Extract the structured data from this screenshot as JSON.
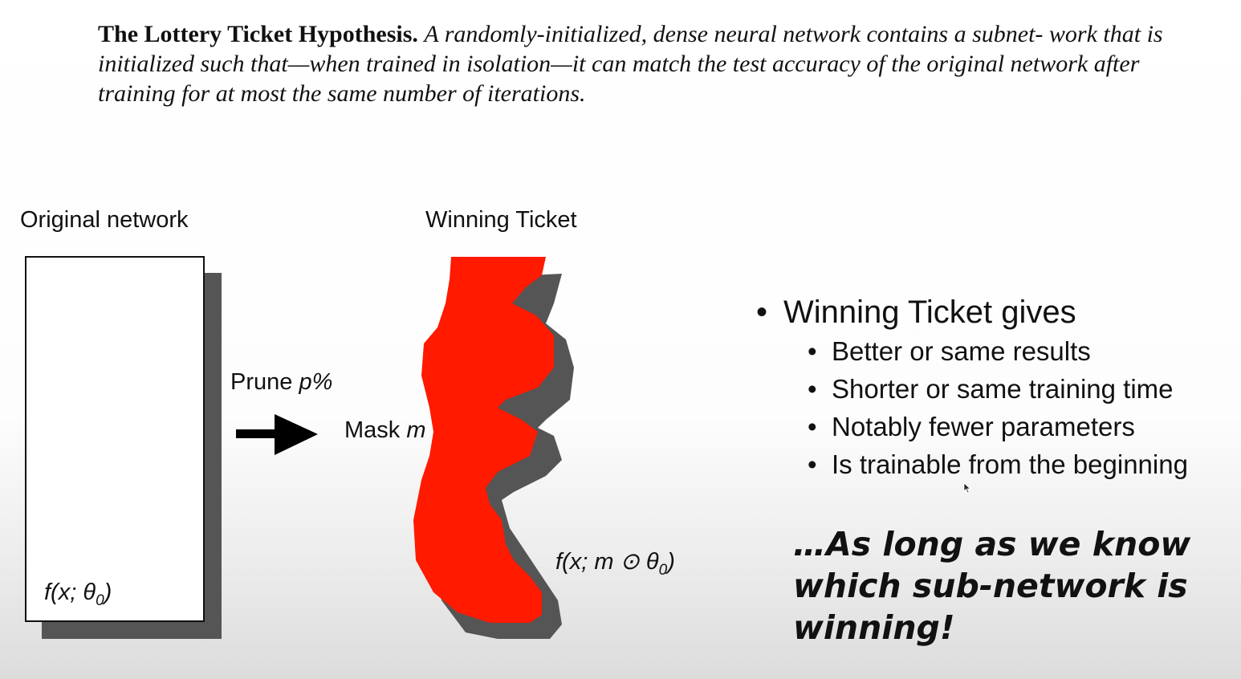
{
  "hypothesis": {
    "title": "The Lottery Ticket Hypothesis.",
    "body": "A randomly-initialized, dense neural network contains a subnet- work that is initialized such that—when trained in isolation—it can match the test accuracy of the original network after training for at most the same number of iterations."
  },
  "diagram": {
    "original_label": "Original network",
    "original_formula": "f(x; θ",
    "original_formula_sub": "0",
    "original_formula_close": ")",
    "prune_prefix": "Prune ",
    "prune_var": "p%",
    "mask_prefix": "Mask ",
    "mask_var": "m",
    "ticket_label": "Winning Ticket",
    "ticket_formula": "f(x; m ⊙ θ",
    "ticket_formula_sub": "0",
    "ticket_formula_close": ")",
    "colors": {
      "ticket_fill": "#ff1a00",
      "shadow": "#555555",
      "box_border": "#111111"
    }
  },
  "bullets": {
    "main": "Winning Ticket gives",
    "sub": [
      "Better or same results",
      "Shorter or same training time",
      "Notably fewer parameters",
      "Is trainable from the beginning"
    ]
  },
  "tagline": {
    "line1": "…As long as we know",
    "line2": "which sub-network is",
    "line3": "winning!"
  }
}
